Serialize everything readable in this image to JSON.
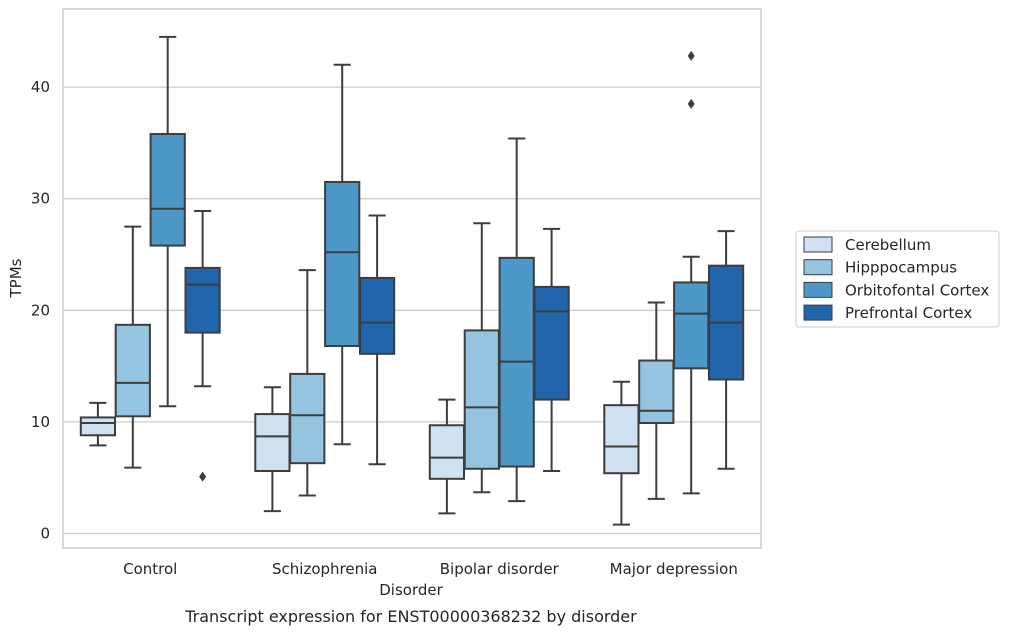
{
  "chart_data": {
    "type": "box",
    "caption": "Transcript expression for ENST00000368232 by disorder",
    "xlabel": "Disorder",
    "ylabel": "TPMs",
    "ylim": [
      -1.3,
      47.0
    ],
    "yticks": [
      0,
      10,
      20,
      30,
      40
    ],
    "grid": true,
    "legend_position": "right",
    "categories": [
      "Control",
      "Schizophrenia",
      "Bipolar disorder",
      "Major depression"
    ],
    "series": [
      {
        "name": "Cerebellum",
        "color": "#d0e1f2",
        "boxes": [
          {
            "whislo": 7.9,
            "q1": 8.8,
            "med": 9.9,
            "q3": 10.4,
            "whishi": 11.7,
            "fliers": []
          },
          {
            "whislo": 2.0,
            "q1": 5.6,
            "med": 8.7,
            "q3": 10.7,
            "whishi": 13.1,
            "fliers": []
          },
          {
            "whislo": 1.8,
            "q1": 4.9,
            "med": 6.8,
            "q3": 9.7,
            "whishi": 12.0,
            "fliers": []
          },
          {
            "whislo": 0.8,
            "q1": 5.4,
            "med": 7.8,
            "q3": 11.5,
            "whishi": 13.6,
            "fliers": []
          }
        ]
      },
      {
        "name": "Hipppocampus",
        "color": "#94c4df",
        "boxes": [
          {
            "whislo": 5.9,
            "q1": 10.5,
            "med": 13.5,
            "q3": 18.7,
            "whishi": 27.5,
            "fliers": []
          },
          {
            "whislo": 3.4,
            "q1": 6.3,
            "med": 10.6,
            "q3": 14.3,
            "whishi": 23.6,
            "fliers": []
          },
          {
            "whislo": 3.7,
            "q1": 5.8,
            "med": 11.3,
            "q3": 18.2,
            "whishi": 27.8,
            "fliers": []
          },
          {
            "whislo": 3.1,
            "q1": 9.9,
            "med": 11.0,
            "q3": 15.5,
            "whishi": 20.7,
            "fliers": []
          }
        ]
      },
      {
        "name": "Orbitofontal Cortex",
        "color": "#4b98c9",
        "boxes": [
          {
            "whislo": 11.4,
            "q1": 25.8,
            "med": 29.1,
            "q3": 35.8,
            "whishi": 44.5,
            "fliers": []
          },
          {
            "whislo": 8.0,
            "q1": 16.8,
            "med": 25.2,
            "q3": 31.5,
            "whishi": 42.0,
            "fliers": []
          },
          {
            "whislo": 2.9,
            "q1": 6.0,
            "med": 15.4,
            "q3": 24.7,
            "whishi": 35.4,
            "fliers": []
          },
          {
            "whislo": 3.6,
            "q1": 14.8,
            "med": 19.7,
            "q3": 22.5,
            "whishi": 24.8,
            "fliers": [
              38.5,
              42.8
            ]
          }
        ]
      },
      {
        "name": "Prefrontal Cortex",
        "color": "#2166ac",
        "boxes": [
          {
            "whislo": 13.2,
            "q1": 18.0,
            "med": 22.3,
            "q3": 23.8,
            "whishi": 28.9,
            "fliers": [
              5.1
            ]
          },
          {
            "whislo": 6.2,
            "q1": 16.1,
            "med": 18.9,
            "q3": 22.9,
            "whishi": 28.5,
            "fliers": []
          },
          {
            "whislo": 5.6,
            "q1": 12.0,
            "med": 19.9,
            "q3": 22.1,
            "whishi": 27.3,
            "fliers": []
          },
          {
            "whislo": 5.8,
            "q1": 13.8,
            "med": 18.9,
            "q3": 24.0,
            "whishi": 27.1,
            "fliers": []
          }
        ]
      }
    ]
  }
}
